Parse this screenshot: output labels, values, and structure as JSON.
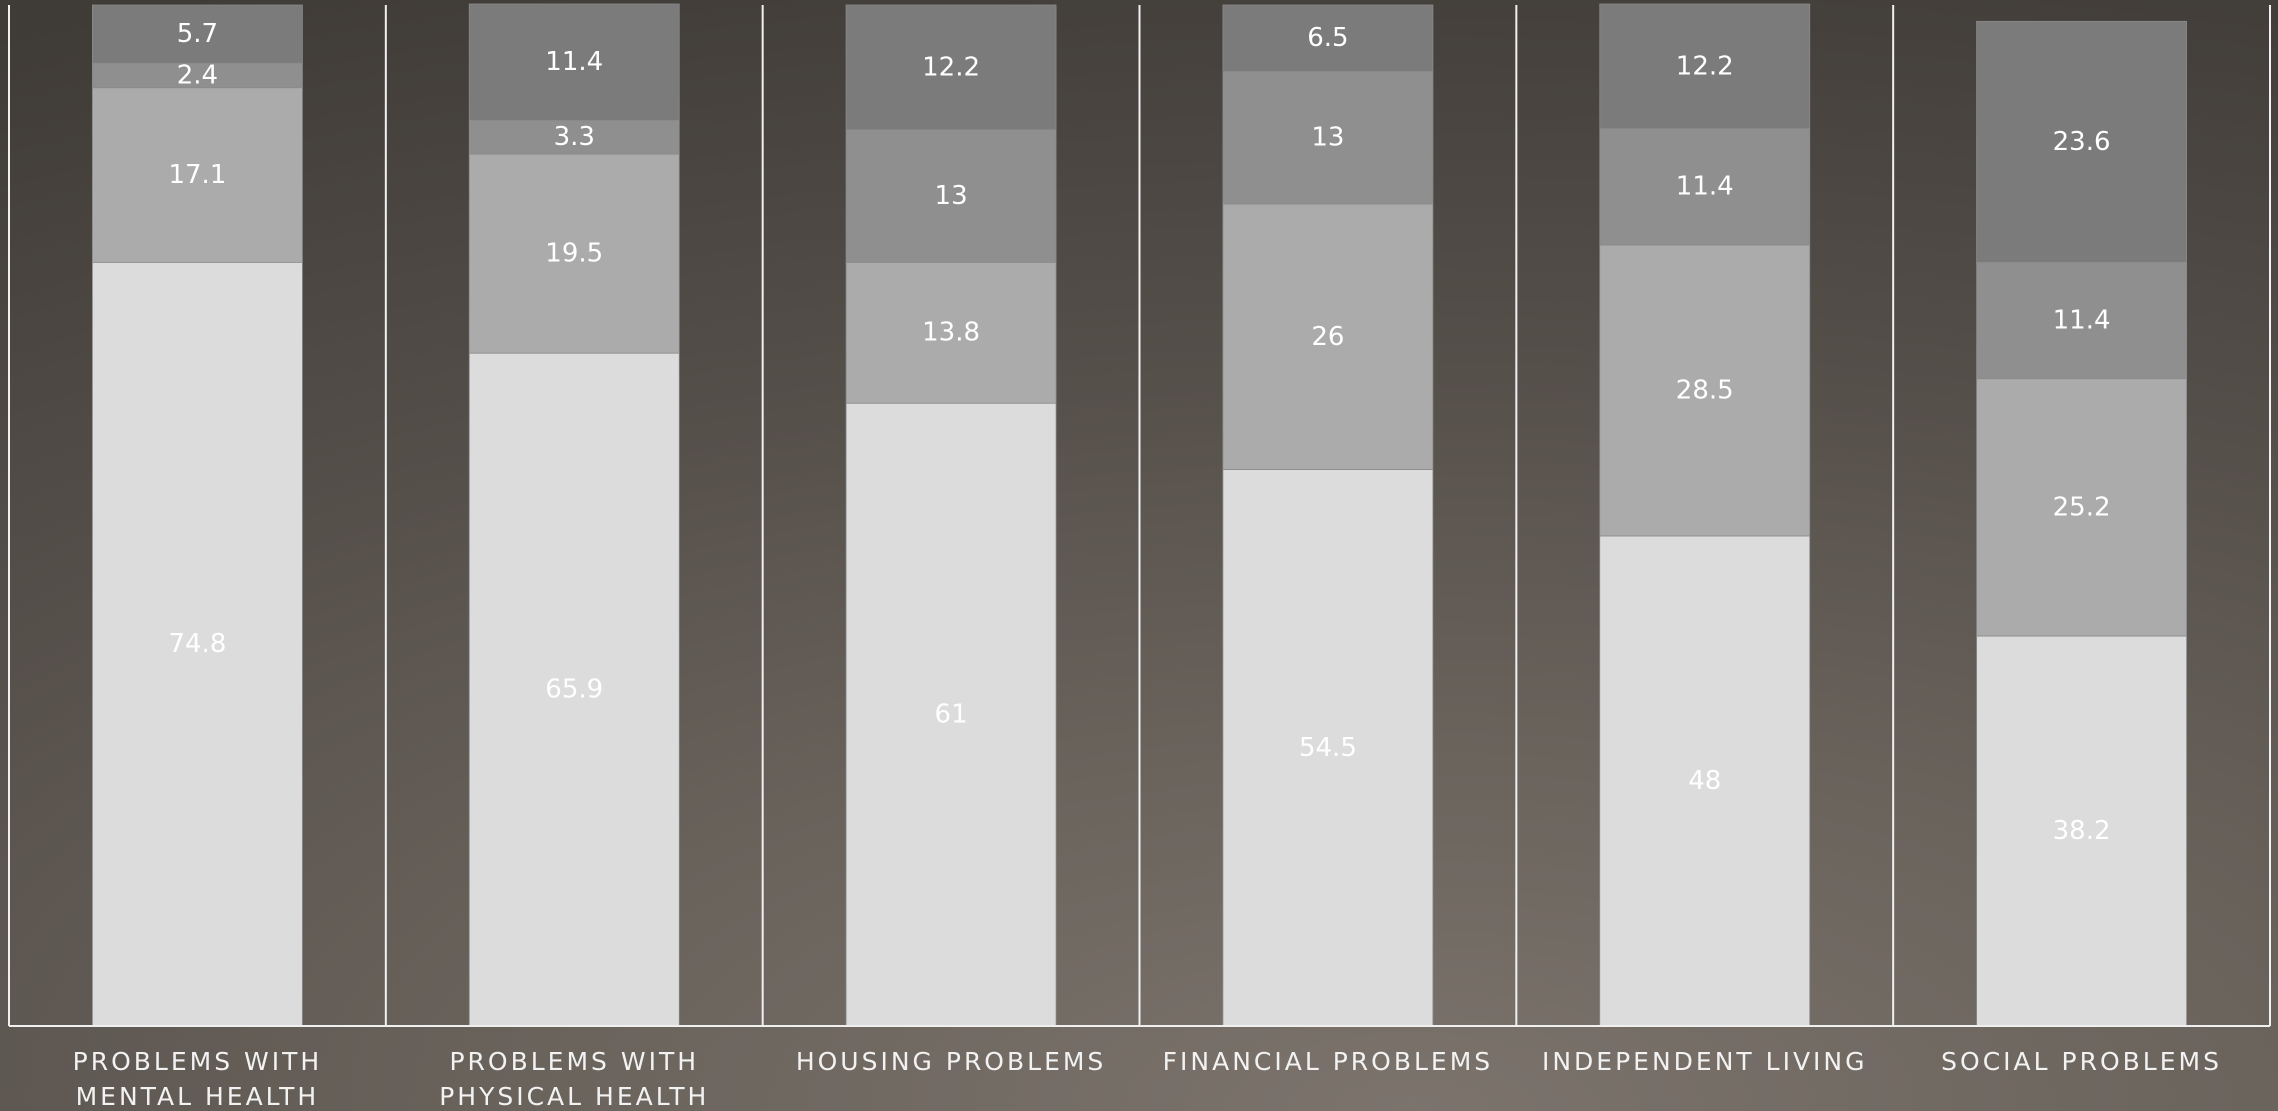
{
  "chart_data": {
    "type": "bar",
    "stacked": true,
    "categories": [
      [
        "PROBLEMS WITH",
        "MENTAL HEALTH"
      ],
      [
        "PROBLEMS WITH",
        "PHYSICAL HEALTH"
      ],
      [
        "HOUSING PROBLEMS"
      ],
      [
        "FINANCIAL PROBLEMS"
      ],
      [
        "INDEPENDENT LIVING"
      ],
      [
        "SOCIAL PROBLEMS"
      ]
    ],
    "series": [
      {
        "color": "#dcdcdc",
        "values": [
          74.8,
          65.9,
          61,
          54.5,
          48,
          38.2
        ]
      },
      {
        "color": "#ababab",
        "values": [
          17.1,
          19.5,
          13.8,
          26,
          28.5,
          25.2
        ]
      },
      {
        "color": "#8f8f8f",
        "values": [
          2.4,
          3.3,
          13,
          13,
          11.4,
          11.4
        ]
      },
      {
        "color": "#7b7b7b",
        "values": [
          5.7,
          11.4,
          12.2,
          6.5,
          12.2,
          23.6
        ]
      }
    ],
    "data_labels": [
      [
        "74.8",
        "65.9",
        "61",
        "54.5",
        "48",
        "38.2"
      ],
      [
        "17.1",
        "19.5",
        "13.8",
        "26",
        "28.5",
        "25.2"
      ],
      [
        "2.4",
        "3.3",
        "13",
        "13",
        "11.4",
        "11.4"
      ],
      [
        "5.7",
        "11.4",
        "12.2",
        "6.5",
        "12.2",
        "23.6"
      ]
    ],
    "ylim": [
      0,
      100
    ],
    "grid": false,
    "legend": "none",
    "title": "",
    "xlabel": "",
    "ylabel": ""
  }
}
